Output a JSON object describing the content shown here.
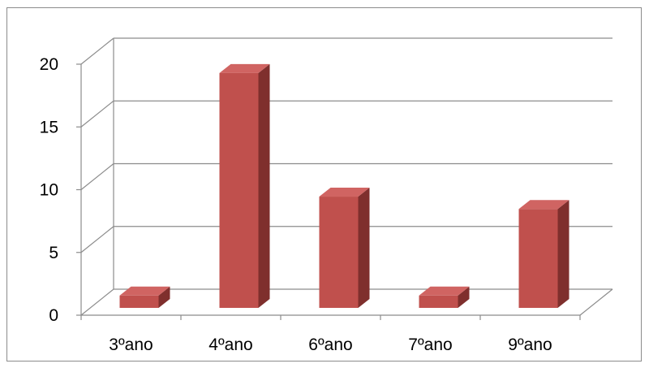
{
  "chart_data": {
    "type": "bar",
    "style": "3d-column",
    "title": "",
    "xlabel": "",
    "ylabel": "",
    "categories": [
      "3ºano",
      "4ºano",
      "6ºano",
      "7ºano",
      "9ºano"
    ],
    "values": [
      1,
      19,
      9,
      1,
      8
    ],
    "ylim": [
      0,
      20
    ],
    "yticks": [
      0,
      5,
      10,
      15,
      20
    ],
    "grid": true,
    "legend": "none",
    "colors": {
      "bar_front": "#c0504d",
      "bar_top": "#d06462",
      "bar_side": "#7f2f2d",
      "grid": "#8c8c8c",
      "axis": "#8c8c8c"
    }
  }
}
